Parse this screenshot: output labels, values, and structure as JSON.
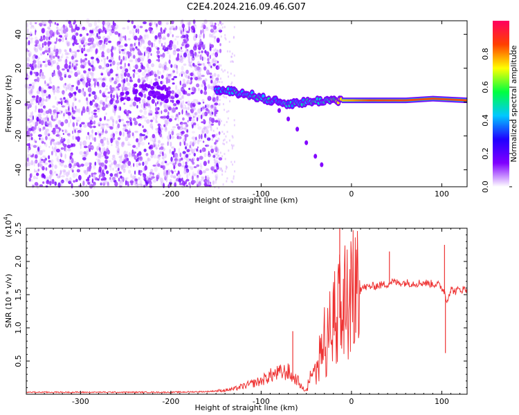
{
  "figure_title": "C2E4.2024.216.09.46.G07",
  "chart_data": [
    {
      "type": "heatmap",
      "title": "",
      "xlabel": "Height of straight line (km)",
      "ylabel": "Frequency (Hz)",
      "xlim": [
        -360,
        128
      ],
      "ylim": [
        -50,
        48
      ],
      "x_ticks": [
        -300,
        -200,
        -100,
        0,
        100
      ],
      "y_ticks": [
        -40,
        -20,
        0,
        20,
        40
      ],
      "colorbar": {
        "label": "Normalized spectral amplitude",
        "range": [
          0,
          1
        ],
        "ticks": [
          "0.0",
          "0.2",
          "0.4",
          "0.6",
          "0.8"
        ],
        "colors": [
          "#ffffff",
          "#8000ff",
          "#2000ff",
          "#00c8ff",
          "#00ff40",
          "#ffff00",
          "#ff4000",
          "#ff0060"
        ]
      },
      "ridge": [
        {
          "x": -150,
          "y": 7,
          "amp": 0.35
        },
        {
          "x": -130,
          "y": 6,
          "amp": 0.45
        },
        {
          "x": -110,
          "y": 4,
          "amp": 0.45
        },
        {
          "x": -90,
          "y": 1,
          "amp": 0.45
        },
        {
          "x": -70,
          "y": -1,
          "amp": 0.4
        },
        {
          "x": -50,
          "y": 0,
          "amp": 0.45
        },
        {
          "x": -30,
          "y": 1,
          "amp": 0.45
        },
        {
          "x": -10,
          "y": 1,
          "amp": 0.75
        },
        {
          "x": 20,
          "y": 1,
          "amp": 0.85
        },
        {
          "x": 60,
          "y": 1,
          "amp": 0.85
        },
        {
          "x": 90,
          "y": 2,
          "amp": 0.85
        },
        {
          "x": 128,
          "y": 1,
          "amp": 0.85
        }
      ],
      "secondary_branch": [
        {
          "x": -80,
          "y": -5
        },
        {
          "x": -70,
          "y": -10
        },
        {
          "x": -60,
          "y": -16
        },
        {
          "x": -50,
          "y": -24
        },
        {
          "x": -40,
          "y": -32
        },
        {
          "x": -33,
          "y": -37
        }
      ]
    },
    {
      "type": "line",
      "title": "",
      "xlabel": "Height of straight line (km)",
      "ylabel": "SNR (10 * v/v)",
      "y_multiplier": "(x10",
      "y_multiplier_exp": "4",
      "y_multiplier_close": ")",
      "xlim": [
        -360,
        128
      ],
      "ylim": [
        0,
        2.5
      ],
      "x_ticks": [
        -300,
        -200,
        -100,
        0,
        100
      ],
      "y_ticks": [
        0.5,
        1.0,
        1.5,
        2.0,
        2.5
      ],
      "y_tick_labels": [
        "0.5",
        "1.0",
        "1.5",
        "2.0",
        "2.5"
      ],
      "line_color": "#ee3333",
      "series": [
        {
          "x": [
            -360,
            -300,
            -250,
            -200,
            -160,
            -140,
            -130,
            -120,
            -110,
            -100,
            -90,
            -80,
            -70,
            -65,
            -60,
            -55,
            -50,
            -45,
            -40,
            -35,
            -30,
            -25,
            -20,
            -15,
            -12,
            -10,
            -5,
            0,
            5,
            10,
            20,
            30,
            40,
            45,
            50,
            60,
            70,
            80,
            90,
            95,
            100,
            103,
            105,
            110,
            115,
            120,
            128
          ],
          "y": [
            0.03,
            0.03,
            0.03,
            0.03,
            0.04,
            0.06,
            0.08,
            0.12,
            0.16,
            0.2,
            0.28,
            0.32,
            0.34,
            0.25,
            0.22,
            0.1,
            0.05,
            0.25,
            0.4,
            0.55,
            0.7,
            0.85,
            1.0,
            1.05,
            1.2,
            1.35,
            1.25,
            1.4,
            1.55,
            1.6,
            1.62,
            1.64,
            1.66,
            1.7,
            1.68,
            1.68,
            1.67,
            1.68,
            1.66,
            1.66,
            1.6,
            1.55,
            1.4,
            1.58,
            1.55,
            1.58,
            1.58
          ]
        }
      ],
      "spikes": [
        {
          "x": -65,
          "y": 0.95
        },
        {
          "x": -20,
          "y": 1.5
        },
        {
          "x": -13,
          "y": 2.5
        },
        {
          "x": 42,
          "y": 2.15
        },
        {
          "x": 103,
          "y": 2.25
        },
        {
          "x": 104,
          "y": 0.62
        }
      ]
    }
  ]
}
